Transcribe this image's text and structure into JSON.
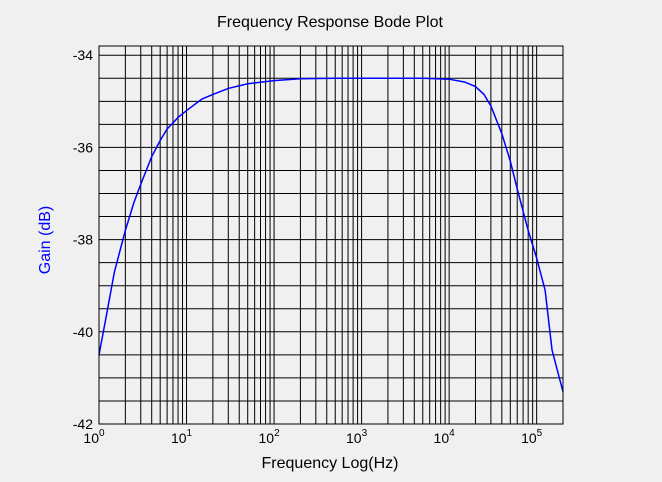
{
  "chart_data": {
    "type": "line",
    "title": "Frequency Response Bode Plot",
    "xlabel": "Frequency Log(Hz)",
    "ylabel": "Gain (dB)",
    "x_scale": "log",
    "xlim": [
      1,
      200000
    ],
    "ylim": [
      -42,
      -33.8
    ],
    "x_ticks": [
      {
        "base": "10",
        "exp": "0",
        "value": 1
      },
      {
        "base": "10",
        "exp": "1",
        "value": 10
      },
      {
        "base": "10",
        "exp": "2",
        "value": 100
      },
      {
        "base": "10",
        "exp": "3",
        "value": 1000
      },
      {
        "base": "10",
        "exp": "4",
        "value": 10000
      },
      {
        "base": "10",
        "exp": "5",
        "value": 100000
      }
    ],
    "y_ticks": [
      {
        "label": "-34",
        "value": -34
      },
      {
        "label": "-36",
        "value": -36
      },
      {
        "label": "-38",
        "value": -38
      },
      {
        "label": "-40",
        "value": -40
      },
      {
        "label": "-42",
        "value": -42
      }
    ],
    "grid": true,
    "colors": {
      "line": "#0000ff",
      "ylabel": "#0000ff",
      "grid": "#000000",
      "background": "#f0f0f0"
    },
    "series": [
      {
        "x": [
          1,
          1.2,
          1.5,
          2,
          2.5,
          3,
          4,
          5,
          6,
          8,
          10,
          15,
          20,
          30,
          50,
          100,
          200,
          500,
          1000,
          2000,
          5000,
          10000,
          15000,
          20000,
          25000,
          30000,
          40000,
          50000,
          60000,
          80000,
          100000,
          125000,
          150000,
          200000
        ],
        "y": [
          -40.5,
          -39.7,
          -38.7,
          -37.8,
          -37.2,
          -36.8,
          -36.2,
          -35.85,
          -35.6,
          -35.35,
          -35.2,
          -34.95,
          -34.85,
          -34.72,
          -34.62,
          -34.55,
          -34.51,
          -34.5,
          -34.5,
          -34.5,
          -34.5,
          -34.52,
          -34.58,
          -34.68,
          -34.85,
          -35.1,
          -35.7,
          -36.3,
          -36.9,
          -37.8,
          -38.4,
          -39.1,
          -40.4,
          -41.3
        ]
      }
    ]
  }
}
